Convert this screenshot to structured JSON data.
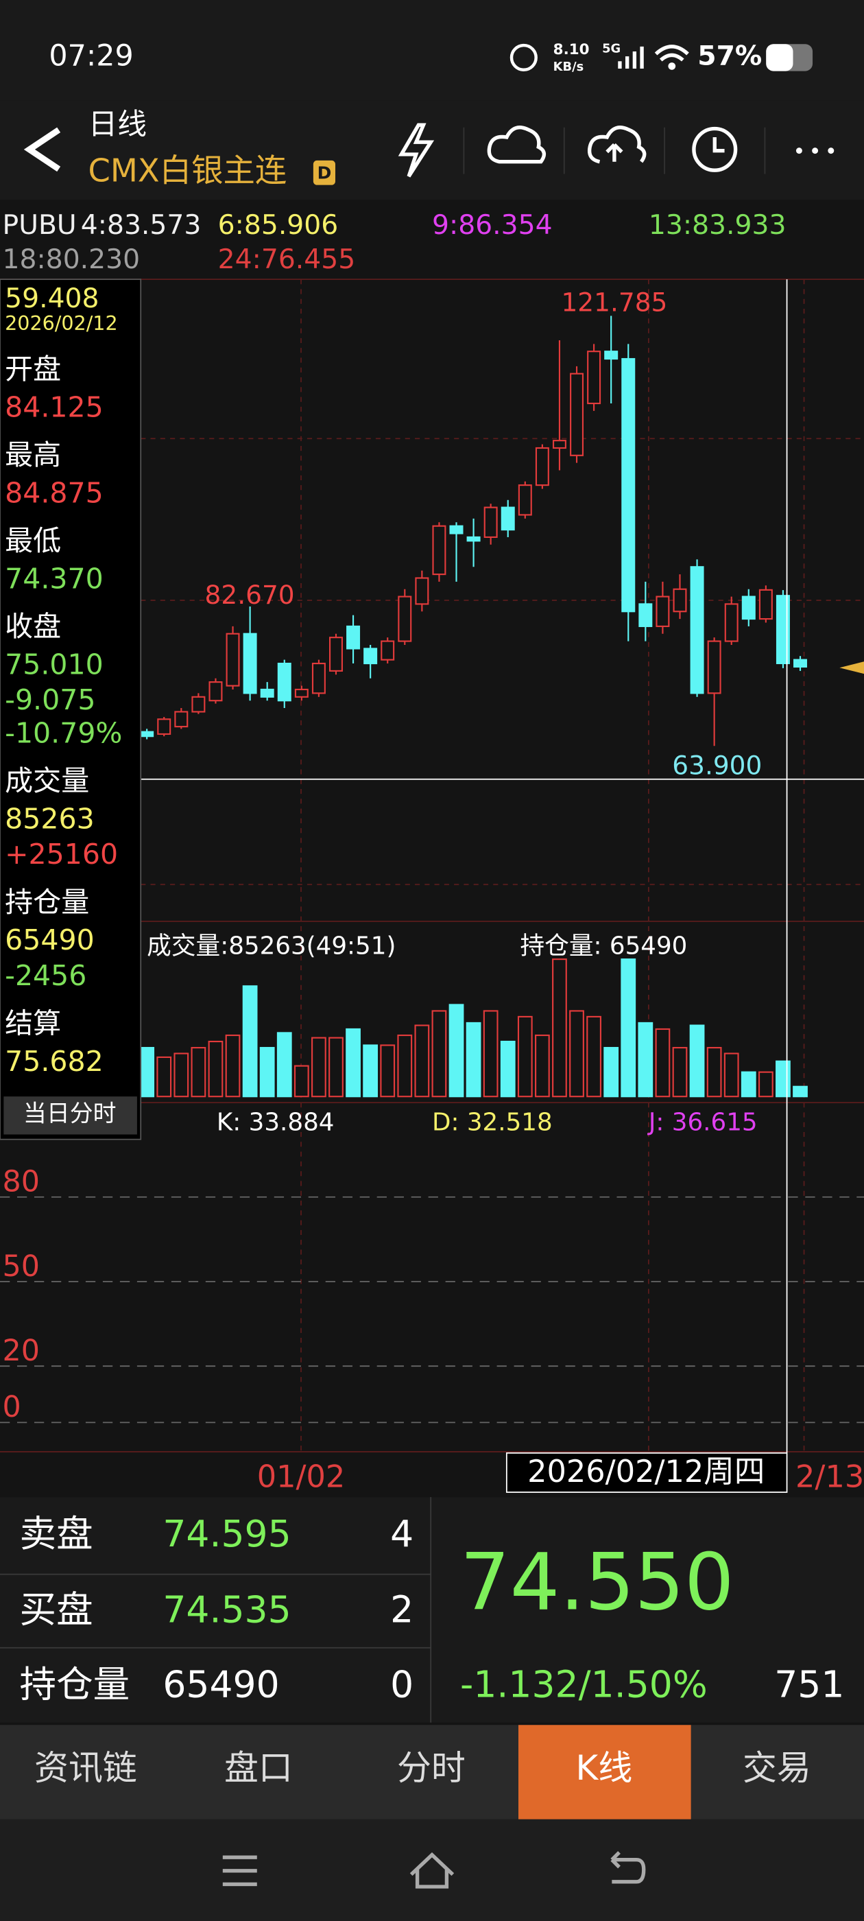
{
  "status_bar": {
    "time": "07:29",
    "net_speed": "8.10",
    "net_unit": "KB/s",
    "signal": "5G",
    "battery": "57%"
  },
  "header": {
    "period": "日线",
    "instrument": "CMX白银主连",
    "badge": "D"
  },
  "ma_legend": [
    {
      "text": "PUBU",
      "color": "#f0f0f0"
    },
    {
      "text": "4:83.573",
      "color": "#f0f0f0"
    },
    {
      "text": "6:85.906",
      "color": "#f5f06a"
    },
    {
      "text": "9:86.354",
      "color": "#e040f0"
    },
    {
      "text": "13:83.933",
      "color": "#7ee05a"
    },
    {
      "text": "18:80.230",
      "color": "#a0a0a0"
    },
    {
      "text": "24:76.455",
      "color": "#e04040"
    }
  ],
  "info_panel": {
    "price": "59.408",
    "date": "2026/02/12",
    "rows": [
      {
        "label": "开盘",
        "values": [
          {
            "text": "84.125",
            "color": "#f04545"
          }
        ]
      },
      {
        "label": "最高",
        "values": [
          {
            "text": "84.875",
            "color": "#f04545"
          }
        ]
      },
      {
        "label": "最低",
        "values": [
          {
            "text": "74.370",
            "color": "#7ee05a"
          }
        ]
      },
      {
        "label": "收盘",
        "values": [
          {
            "text": "75.010",
            "color": "#7ee05a"
          },
          {
            "text": "-9.075",
            "color": "#7ee05a"
          },
          {
            "text": "-10.79%",
            "color": "#7ee05a"
          }
        ]
      },
      {
        "label": "成交量",
        "values": [
          {
            "text": "85263",
            "color": "#f5f06a"
          },
          {
            "text": "+25160",
            "color": "#f04545"
          }
        ]
      },
      {
        "label": "持仓量",
        "values": [
          {
            "text": "65490",
            "color": "#f5f06a"
          },
          {
            "text": "-2456",
            "color": "#7ee05a"
          }
        ]
      },
      {
        "label": "结算",
        "values": [
          {
            "text": "75.682",
            "color": "#f5f06a"
          }
        ]
      }
    ],
    "button": "当日分时"
  },
  "chart_data": {
    "type": "candlestick",
    "open": [
      65.8,
      65.5,
      66.5,
      68.5,
      70,
      72,
      79,
      71.5,
      75,
      70.5,
      71,
      74,
      80,
      77,
      75.5,
      78,
      83,
      87,
      93.5,
      92,
      92,
      96,
      95,
      99,
      104,
      103,
      110,
      117,
      116,
      83,
      80,
      82,
      88,
      71,
      78,
      84,
      81,
      84.125,
      75.5
    ],
    "close": [
      65.2,
      67.5,
      68.5,
      70.5,
      72.5,
      79,
      71,
      70.5,
      70,
      71.5,
      75,
      78.5,
      77,
      75,
      78,
      84,
      86.5,
      93.5,
      92.5,
      91.5,
      96,
      93,
      99,
      104,
      105,
      114,
      117,
      116,
      82,
      80,
      84,
      85,
      71,
      78,
      83,
      81,
      84.9,
      75.01,
      74.55
    ],
    "high": [
      66.2,
      67.8,
      69,
      71,
      73,
      80,
      82.67,
      72.5,
      75.5,
      72,
      75.5,
      79,
      81.5,
      77.5,
      78.5,
      85,
      87.5,
      94,
      94,
      94.5,
      96.5,
      97,
      99.5,
      104.5,
      118.5,
      115,
      118,
      121.785,
      118,
      86,
      86,
      87,
      89,
      78.5,
      84,
      85,
      85.5,
      84.875,
      76
    ],
    "low": [
      64.8,
      65.2,
      66.2,
      68.2,
      69.6,
      71.5,
      70,
      70,
      69,
      70,
      70.5,
      73.5,
      75,
      73,
      75,
      77.5,
      82,
      86,
      86,
      88,
      91,
      92,
      94.5,
      98.5,
      101,
      102,
      109,
      110,
      78,
      78,
      79,
      81,
      70.5,
      63.9,
      77.5,
      80,
      80.5,
      74.37,
      74
    ],
    "up_color": "#e23b3b",
    "down_color": "#5ef5f5",
    "ylim": [
      40.3,
      126.7
    ],
    "annotations": {
      "high": "121.785",
      "local_high": "82.670",
      "low": "63.900"
    },
    "volume": {
      "title": "成交量:85263(49:51)",
      "open_interest": "持仓量: 65490",
      "values": [
        118000,
        95000,
        104000,
        118000,
        133000,
        148000,
        267000,
        118000,
        154000,
        74000,
        142000,
        142000,
        163000,
        124000,
        124000,
        148000,
        172000,
        207000,
        222000,
        178000,
        207000,
        133000,
        193000,
        148000,
        332000,
        207000,
        193000,
        118000,
        332000,
        178000,
        163000,
        118000,
        172000,
        118000,
        104000,
        59000,
        59000,
        85263,
        24000
      ],
      "ylim": [
        0,
        400000
      ]
    },
    "kdj": {
      "k": "K: 33.884",
      "d": "D: 32.518",
      "j": "J: 36.615",
      "ylim": [
        -10.4,
        113.5
      ],
      "yticks": [
        80,
        50,
        20,
        0
      ]
    },
    "x_labels": {
      "left": "01/02",
      "cursor": "2026/02/12周四",
      "right": "2/13"
    }
  },
  "quote": {
    "rows": [
      {
        "label": "卖盘",
        "price": "74.595",
        "count": "4"
      },
      {
        "label": "买盘",
        "price": "74.535",
        "count": "2"
      },
      {
        "label": "持仓量",
        "price": "65490",
        "count": "0"
      }
    ],
    "last": "74.550",
    "change": "-1.132/1.50%",
    "volume": "751"
  },
  "tabs": [
    "资讯链",
    "盘口",
    "分时",
    "K线",
    "交易"
  ],
  "active_tab": 3
}
